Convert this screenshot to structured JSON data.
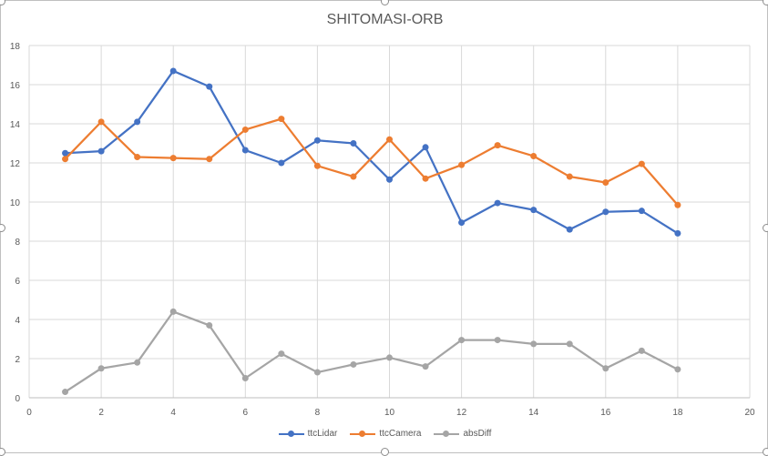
{
  "chart_data": {
    "type": "line",
    "title": "SHITOMASI-ORB",
    "xlim": [
      0,
      20
    ],
    "ylim": [
      0,
      18
    ],
    "x_ticks": [
      "0",
      "2",
      "4",
      "6",
      "8",
      "10",
      "12",
      "14",
      "16",
      "18",
      "20"
    ],
    "y_ticks": [
      "0",
      "2",
      "4",
      "6",
      "8",
      "10",
      "12",
      "14",
      "16",
      "18"
    ],
    "grid": true,
    "legend_position": "bottom",
    "x": [
      1,
      2,
      3,
      4,
      5,
      6,
      7,
      8,
      9,
      10,
      11,
      12,
      13,
      14,
      15,
      16,
      17,
      18
    ],
    "series": [
      {
        "name": "ttcLidar",
        "color": "#4472c4",
        "values": [
          12.5,
          12.6,
          14.1,
          16.7,
          15.9,
          12.65,
          12.0,
          13.15,
          13.0,
          11.15,
          12.8,
          8.95,
          9.95,
          9.6,
          8.6,
          9.5,
          9.55,
          8.4
        ]
      },
      {
        "name": "ttcCamera",
        "color": "#ed7d31",
        "values": [
          12.2,
          14.1,
          12.3,
          12.25,
          12.2,
          13.7,
          14.25,
          11.85,
          11.3,
          13.2,
          11.2,
          11.9,
          12.9,
          12.35,
          11.3,
          11.0,
          11.95,
          9.85
        ]
      },
      {
        "name": "absDiff",
        "color": "#a5a5a5",
        "values": [
          0.3,
          1.5,
          1.8,
          4.4,
          3.7,
          1.0,
          2.25,
          1.3,
          1.7,
          2.05,
          1.6,
          2.95,
          2.95,
          2.75,
          2.75,
          1.5,
          2.4,
          1.45
        ]
      }
    ]
  }
}
